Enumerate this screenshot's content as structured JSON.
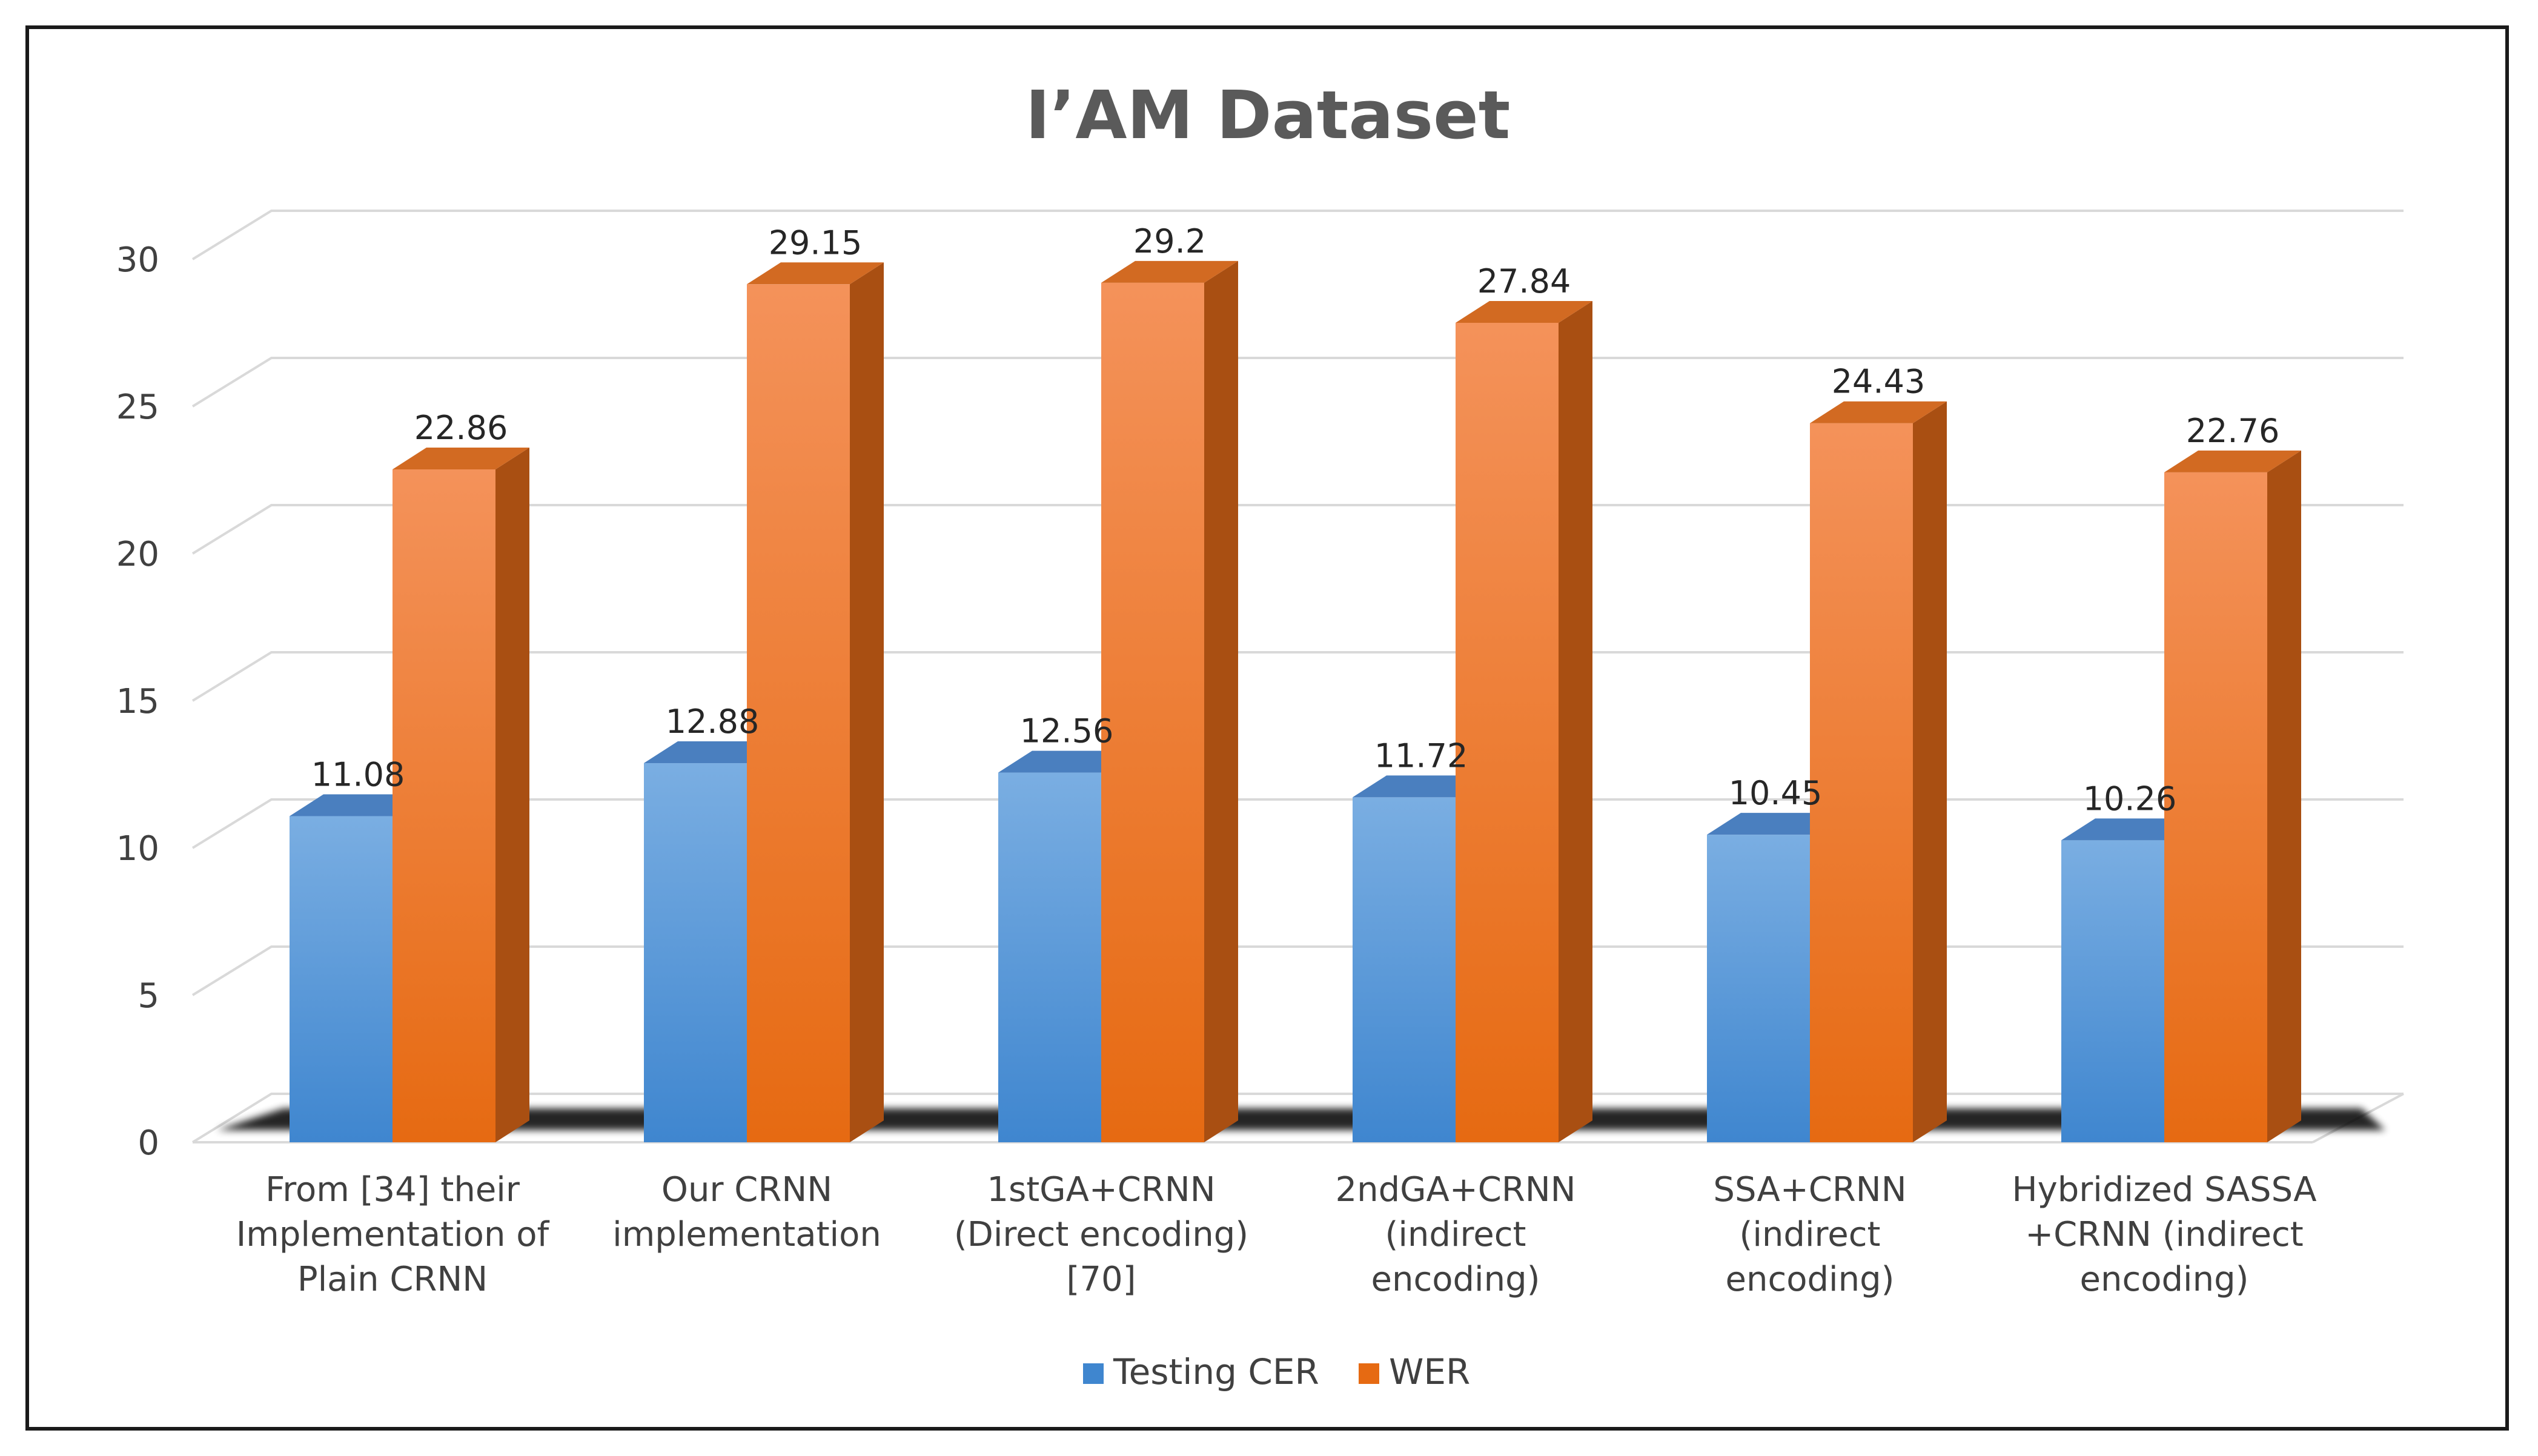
{
  "chart_data": {
    "type": "bar",
    "title": "I’AM Dataset",
    "categories": [
      [
        "From [34] their",
        "Implementation of",
        "Plain CRNN"
      ],
      [
        "Our CRNN",
        "implementation"
      ],
      [
        "1stGA+CRNN",
        "(Direct encoding)",
        "[70]"
      ],
      [
        "2ndGA+CRNN",
        "(indirect",
        "encoding)"
      ],
      [
        "SSA+CRNN",
        "(indirect",
        "encoding)"
      ],
      [
        "Hybridized SASSA",
        "+CRNN (indirect",
        "encoding)"
      ]
    ],
    "series": [
      {
        "name": "Testing CER",
        "values": [
          11.08,
          12.88,
          12.56,
          11.72,
          10.45,
          10.26
        ],
        "labels": [
          "11.08",
          "12.88",
          "12.56",
          "11.72",
          "10.45",
          "10.26"
        ]
      },
      {
        "name": "WER",
        "values": [
          22.86,
          29.15,
          29.2,
          27.84,
          24.43,
          22.76
        ],
        "labels": [
          "22.86",
          "29.15",
          "29.2",
          "27.84",
          "24.43",
          "22.76"
        ]
      }
    ],
    "xlabel": "",
    "ylabel": "",
    "ylim": [
      0,
      30
    ],
    "yticks": [
      "0",
      "5",
      "10",
      "15",
      "20",
      "25",
      "30"
    ],
    "grid": true,
    "legend": "bottom",
    "colors": {
      "series": [
        {
          "top": "#7aaee2",
          "base": "#3f86cf",
          "cap": "#4a7fbf",
          "edge": "#2f6aa8"
        },
        {
          "top": "#f4925a",
          "base": "#e66a12",
          "cap": "#d26a22",
          "edge": "#a94f12"
        }
      ],
      "grid": "#d9d9d9",
      "shadow": "#000000"
    }
  }
}
